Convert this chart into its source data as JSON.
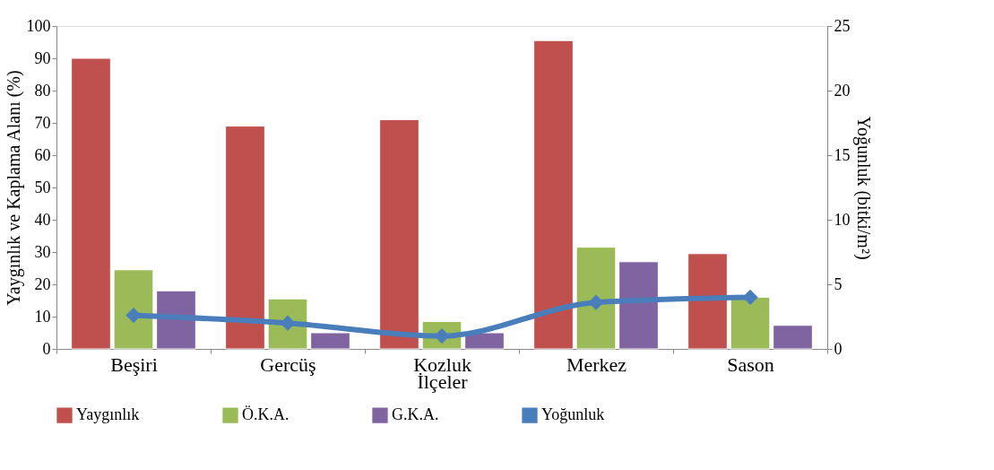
{
  "chart_data": {
    "type": "bar",
    "categories": [
      "Beşiri",
      "Gercüş",
      "Kozluk",
      "Merkez",
      "Sason"
    ],
    "xlabel": "İlçeler",
    "ylabel": "Yaygınlık ve Kaplama Alanı (%)",
    "y2label": "Yoğunluk (bitki/m²)",
    "series": [
      {
        "name": "Yaygınlık",
        "color": "#c0504d",
        "values": [
          90,
          69,
          71,
          95.5,
          29.5
        ]
      },
      {
        "name": "Ö.K.A.",
        "color": "#9bbb59",
        "values": [
          24.5,
          15.5,
          8.5,
          31.5,
          16
        ]
      },
      {
        "name": "G.K.A.",
        "color": "#8064a2",
        "values": [
          18,
          5,
          5,
          27,
          7.3
        ]
      },
      {
        "name": "Yoğunluk",
        "color": "#4a7ebb",
        "type": "line",
        "axis": "y2",
        "marker": "diamond",
        "values": [
          2.6,
          2.0,
          1.0,
          3.6,
          4.0
        ]
      }
    ],
    "ylim": [
      0,
      100
    ],
    "yticks": [
      0,
      10,
      20,
      30,
      40,
      50,
      60,
      70,
      80,
      90,
      100
    ],
    "y2lim": [
      0,
      25
    ],
    "y2ticks": [
      0,
      5,
      10,
      15,
      20,
      25
    ],
    "grid": false,
    "legend": "bottom"
  }
}
